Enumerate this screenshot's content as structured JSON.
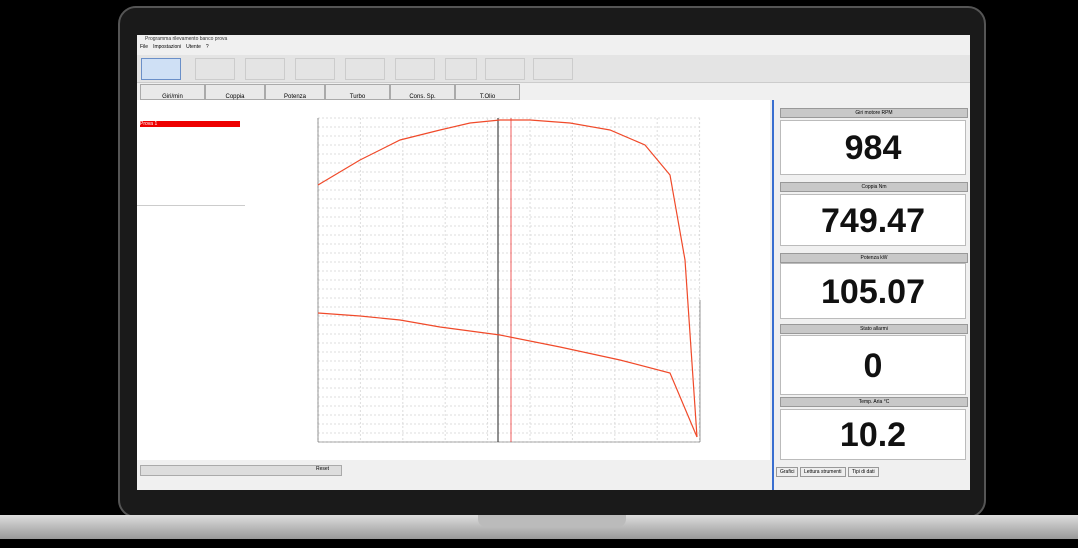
{
  "window": {
    "title": "Programma rilevamento banco prova",
    "menu": [
      "File",
      "Impostazioni",
      "Utente",
      "?"
    ]
  },
  "tabs": [
    "Giri/min",
    "Coppia",
    "Potenza",
    "Turbo",
    "Cons. Sp.",
    "T.Olio"
  ],
  "left_panel": {
    "items": [
      "Prova 1"
    ]
  },
  "readouts": [
    {
      "label": "Giri motore RPM",
      "value": "984"
    },
    {
      "label": "Coppia Nm",
      "value": "749.47"
    },
    {
      "label": "Potenza kW",
      "value": "105.07"
    },
    {
      "label": "Stato allarmi",
      "value": "0"
    },
    {
      "label": "Temp. Aria °C",
      "value": "10.2"
    }
  ],
  "bottom_tabs": [
    "Grafici",
    "Lettura strumenti",
    "Tipi di dati"
  ],
  "bottom_controls": [
    "Reset"
  ]
}
